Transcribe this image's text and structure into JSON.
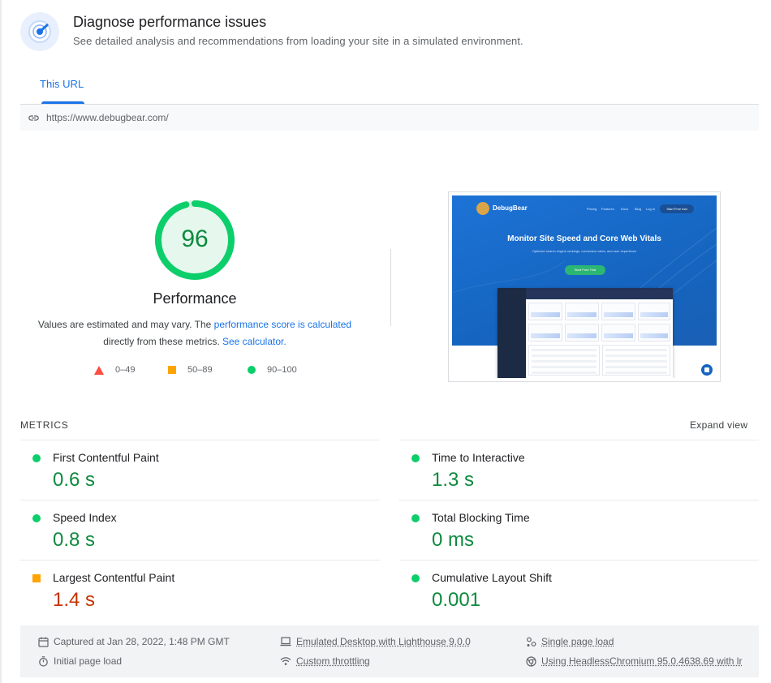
{
  "header": {
    "title": "Diagnose performance issues",
    "subtitle": "See detailed analysis and recommendations from loading your site in a simulated environment."
  },
  "tabs": [
    {
      "label": "This URL",
      "active": true
    }
  ],
  "url": "https://www.debugbear.com/",
  "performance": {
    "score": "96",
    "label": "Performance",
    "desc_prefix": "Values are estimated and may vary. The ",
    "desc_link1": "performance score is calculated",
    "desc_middle": " directly from these metrics. ",
    "desc_link2": "See calculator.",
    "legend": [
      {
        "range": "0–49",
        "shape": "triangle",
        "color": "#ff4e42"
      },
      {
        "range": "50–89",
        "shape": "square",
        "color": "#ffa400"
      },
      {
        "range": "90–100",
        "shape": "circle",
        "color": "#0cce6b"
      }
    ]
  },
  "screenshot": {
    "brand": "DebugBear",
    "nav": [
      "Pricing",
      "Features",
      "Docs",
      "Blog",
      "Log In"
    ],
    "nav_button": "Start Free trial",
    "headline": "Monitor Site Speed and Core Web Vitals",
    "subline": "Optimize search engine rankings, conversion rates, and user experience",
    "cta": "Start Free Trial"
  },
  "metrics": {
    "title": "METRICS",
    "expand_label": "Expand view",
    "items": [
      {
        "name": "First Contentful Paint",
        "value": "0.6 s",
        "status": "good"
      },
      {
        "name": "Time to Interactive",
        "value": "1.3 s",
        "status": "good"
      },
      {
        "name": "Speed Index",
        "value": "0.8 s",
        "status": "good"
      },
      {
        "name": "Total Blocking Time",
        "value": "0 ms",
        "status": "good"
      },
      {
        "name": "Largest Contentful Paint",
        "value": "1.4 s",
        "status": "average"
      },
      {
        "name": "Cumulative Layout Shift",
        "value": "0.001",
        "status": "good"
      }
    ]
  },
  "footer": {
    "captured": "Captured at Jan 28, 2022, 1:48 PM GMT",
    "initial_load": "Initial page load",
    "emulated": "Emulated Desktop with Lighthouse 9.0.0",
    "throttling": "Custom throttling",
    "single_page": "Single page load",
    "browser": "Using HeadlessChromium 95.0.4638.69 with lr"
  },
  "colors": {
    "accent": "#1a73e8",
    "good": "#0c8a3d",
    "average": "#c33300",
    "good_marker": "#0cce6b",
    "average_marker": "#ffa400"
  }
}
